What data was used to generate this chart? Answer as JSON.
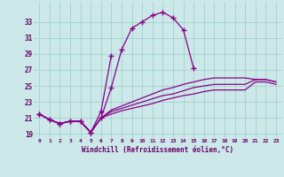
{
  "xlabel": "Windchill (Refroidissement éolien,°C)",
  "background_color": "#cce8e8",
  "line_color": "#880088",
  "grid_color": "#99cccc",
  "text_color": "#660066",
  "x_values": [
    0,
    1,
    2,
    3,
    4,
    5,
    6,
    7,
    8,
    9,
    10,
    11,
    12,
    13,
    14,
    15,
    16,
    17,
    18,
    19,
    20,
    21,
    22,
    23
  ],
  "series1": [
    21.5,
    20.8,
    20.3,
    20.6,
    20.6,
    19.2,
    21.0,
    24.8,
    29.5,
    32.2,
    33.0,
    33.8,
    34.2,
    33.5,
    32.0,
    27.2,
    null,
    null,
    null,
    null,
    null,
    null,
    null,
    null
  ],
  "series2": [
    21.5,
    20.8,
    20.3,
    20.6,
    20.6,
    19.2,
    21.8,
    28.8,
    null,
    null,
    null,
    null,
    null,
    null,
    null,
    null,
    null,
    null,
    null,
    null,
    null,
    null,
    null,
    null
  ],
  "series3": [
    21.5,
    20.8,
    20.3,
    20.6,
    20.6,
    19.2,
    21.0,
    22.0,
    22.5,
    23.0,
    23.5,
    24.0,
    24.5,
    24.8,
    25.2,
    25.5,
    25.8,
    26.0,
    26.0,
    26.0,
    26.0,
    25.8,
    25.8,
    25.5
  ],
  "series4": [
    21.5,
    20.8,
    20.3,
    20.6,
    20.6,
    19.2,
    21.0,
    21.8,
    22.2,
    22.6,
    23.0,
    23.4,
    23.8,
    24.0,
    24.4,
    24.8,
    25.0,
    25.2,
    25.2,
    25.2,
    25.2,
    25.8,
    25.8,
    25.5
  ],
  "series5": [
    21.5,
    20.8,
    20.3,
    20.6,
    20.6,
    19.2,
    21.0,
    21.5,
    21.9,
    22.2,
    22.5,
    22.8,
    23.2,
    23.5,
    23.8,
    24.0,
    24.3,
    24.5,
    24.5,
    24.5,
    24.5,
    25.5,
    25.5,
    25.2
  ],
  "ylim": [
    18.5,
    35.5
  ],
  "yticks": [
    19,
    21,
    23,
    25,
    27,
    29,
    31,
    33
  ],
  "figsize": [
    3.2,
    2.0
  ],
  "dpi": 100
}
